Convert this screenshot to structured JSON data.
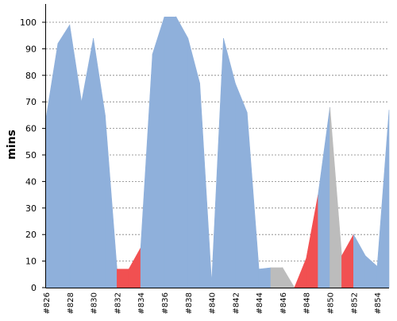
{
  "chart_data": {
    "type": "area",
    "ylabel": "mins",
    "xlabel": "",
    "ylim": [
      0,
      105
    ],
    "yticks": [
      0,
      10,
      20,
      30,
      40,
      50,
      60,
      70,
      80,
      90,
      100
    ],
    "grid": "horizontal dashed",
    "x": [
      "#826",
      "#827",
      "#828",
      "#829",
      "#830",
      "#831",
      "#832",
      "#833",
      "#834",
      "#835",
      "#836",
      "#837",
      "#838",
      "#839",
      "#840",
      "#841",
      "#842",
      "#843",
      "#844",
      "#845",
      "#846",
      "#847",
      "#848",
      "#849",
      "#850",
      "#851",
      "#852",
      "#853",
      "#854",
      "#855"
    ],
    "xtick_labels": [
      "#826",
      "#828",
      "#830",
      "#832",
      "#834",
      "#836",
      "#838",
      "#840",
      "#842",
      "#844",
      "#846",
      "#848",
      "#850",
      "#852",
      "#854"
    ],
    "values": [
      64,
      92,
      99,
      70,
      94,
      65,
      7,
      7,
      15,
      88,
      102,
      102,
      94,
      77,
      2,
      94,
      77,
      66,
      7,
      7.5,
      7.5,
      0,
      11,
      35,
      68,
      12,
      20,
      12,
      8,
      67
    ],
    "status": [
      "success",
      "success",
      "success",
      "success",
      "success",
      "success",
      "success",
      "failure",
      "failure",
      "success",
      "success",
      "success",
      "success",
      "success",
      "success",
      "success",
      "success",
      "success",
      "success",
      "success",
      "aborted",
      "aborted",
      "failure",
      "failure",
      "success",
      "aborted",
      "failure",
      "success",
      "success",
      "success"
    ],
    "colors": {
      "success": "#8fb0db",
      "failure": "#f15051",
      "aborted": "#bcbcbc",
      "grid": "#808080",
      "axis": "#000000"
    }
  }
}
